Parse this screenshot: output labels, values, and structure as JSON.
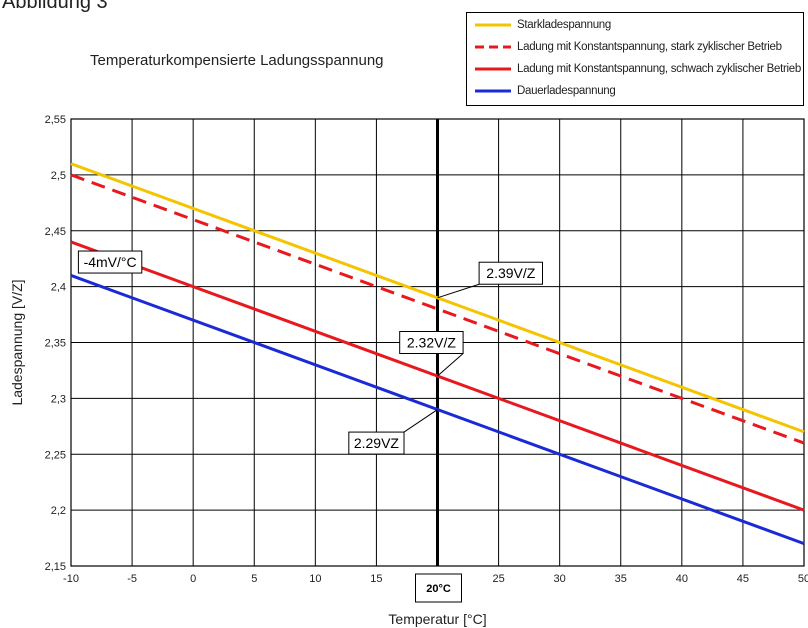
{
  "figure_title": "Abbildung 3",
  "chart_data": {
    "type": "line",
    "title": "Temperaturkompensierte Ladungsspannung",
    "xlabel": "Temperatur [°C]",
    "ylabel": "Ladespannung [V/Z]",
    "xlim": [
      -10,
      50
    ],
    "ylim": [
      2.15,
      2.55
    ],
    "x_ticks": [
      -10,
      -5,
      0,
      5,
      10,
      15,
      20,
      25,
      30,
      35,
      40,
      45,
      50
    ],
    "x_tick_labels": [
      "-10",
      "-5",
      "0",
      "5",
      "10",
      "15",
      "20°C",
      "25",
      "30",
      "35",
      "40",
      "45",
      "50"
    ],
    "y_ticks": [
      2.15,
      2.2,
      2.25,
      2.3,
      2.35,
      2.4,
      2.45,
      2.5,
      2.55
    ],
    "y_tick_labels": [
      "2,15",
      "2,2",
      "2,25",
      "2,3",
      "2,35",
      "2,4",
      "2,45",
      "2,5",
      "2,55"
    ],
    "grid": true,
    "legend_position": "top-right",
    "marker_x": 20,
    "series": [
      {
        "name": "Starkladespannung",
        "color": "#F5C400",
        "dash": "solid",
        "x": [
          -10,
          50
        ],
        "y": [
          2.51,
          2.27
        ]
      },
      {
        "name": "Ladung mit Konstantspannung, stark zyklischer Betrieb",
        "color": "#E8191E",
        "dash": "dashed",
        "x": [
          -10,
          50
        ],
        "y": [
          2.5,
          2.26
        ]
      },
      {
        "name": "Ladung mit Konstantspannung, schwach zyklischer Betrieb",
        "color": "#E8191E",
        "dash": "solid",
        "x": [
          -10,
          50
        ],
        "y": [
          2.44,
          2.2
        ]
      },
      {
        "name": "Dauerladespannung",
        "color": "#1A2BD6",
        "dash": "solid",
        "x": [
          -10,
          50
        ],
        "y": [
          2.41,
          2.17
        ]
      }
    ],
    "annotations": [
      {
        "text": "-4mV/°C",
        "x": -6.8,
        "y": 2.422
      },
      {
        "text": "2.39V/Z",
        "x": 26.0,
        "y": 2.412,
        "pointer": [
          20,
          2.39
        ]
      },
      {
        "text": "2.32V/Z",
        "x": 19.5,
        "y": 2.35,
        "pointer": [
          20,
          2.32
        ]
      },
      {
        "text": "2.29VZ",
        "x": 15.0,
        "y": 2.26,
        "pointer": [
          20,
          2.29
        ]
      }
    ]
  }
}
